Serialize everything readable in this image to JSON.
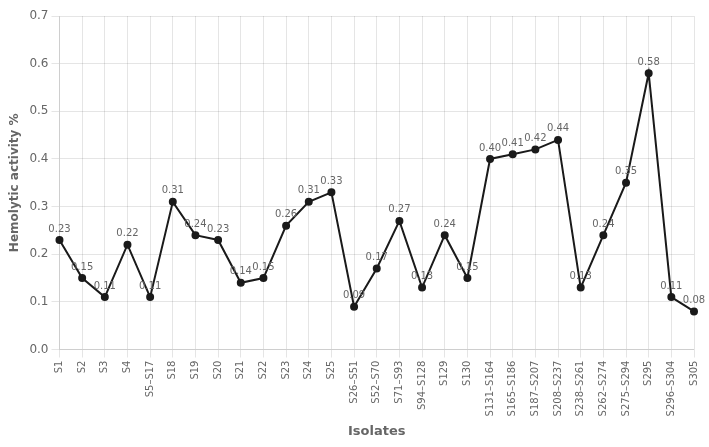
{
  "chart_data": {
    "type": "line",
    "categories": [
      "S1",
      "S2",
      "S3",
      "S4",
      "S5–S17",
      "S18",
      "S19",
      "S20",
      "S21",
      "S22",
      "S23",
      "S24",
      "S25",
      "S26–S51",
      "S52–S70",
      "S71–S93",
      "S94–S128",
      "S129",
      "S130",
      "S131–S164",
      "S165–S186",
      "S187–S207",
      "S208–S237",
      "S238–S261",
      "S262–S274",
      "S275–S294",
      "S295",
      "S296–S304",
      "S305"
    ],
    "values": [
      0.23,
      0.15,
      0.11,
      0.22,
      0.11,
      0.31,
      0.24,
      0.23,
      0.14,
      0.15,
      0.26,
      0.31,
      0.33,
      0.09,
      0.17,
      0.27,
      0.13,
      0.24,
      0.15,
      0.4,
      0.41,
      0.42,
      0.44,
      0.13,
      0.24,
      0.35,
      0.58,
      0.11,
      0.08
    ],
    "value_labels": [
      "0.23",
      "0.15",
      "0.11",
      "0.22",
      "0.11",
      "0.31",
      "0.24",
      "0.23",
      "0.14",
      "0.15",
      "0.26",
      "0.31",
      "0.33",
      "0.09",
      "0.17",
      "0.27",
      "0.13",
      "0.24",
      "0.15",
      "0.40",
      "0.41",
      "0.42",
      "0.44",
      "0.13",
      "0.24",
      "0.35",
      "0.58",
      "0.11",
      "0.08"
    ],
    "data_labels": true,
    "x_label": "Isolates",
    "y_label": "Hemolytic activity %",
    "ylim": [
      0,
      0.7
    ],
    "yticks": [
      {
        "value": 0,
        "label": "0.0"
      },
      0.1,
      0.2,
      0.3,
      0.4,
      0.5,
      0.6,
      0.7
    ],
    "color": "#1a1a1a",
    "marker": "circle",
    "grid": true
  }
}
